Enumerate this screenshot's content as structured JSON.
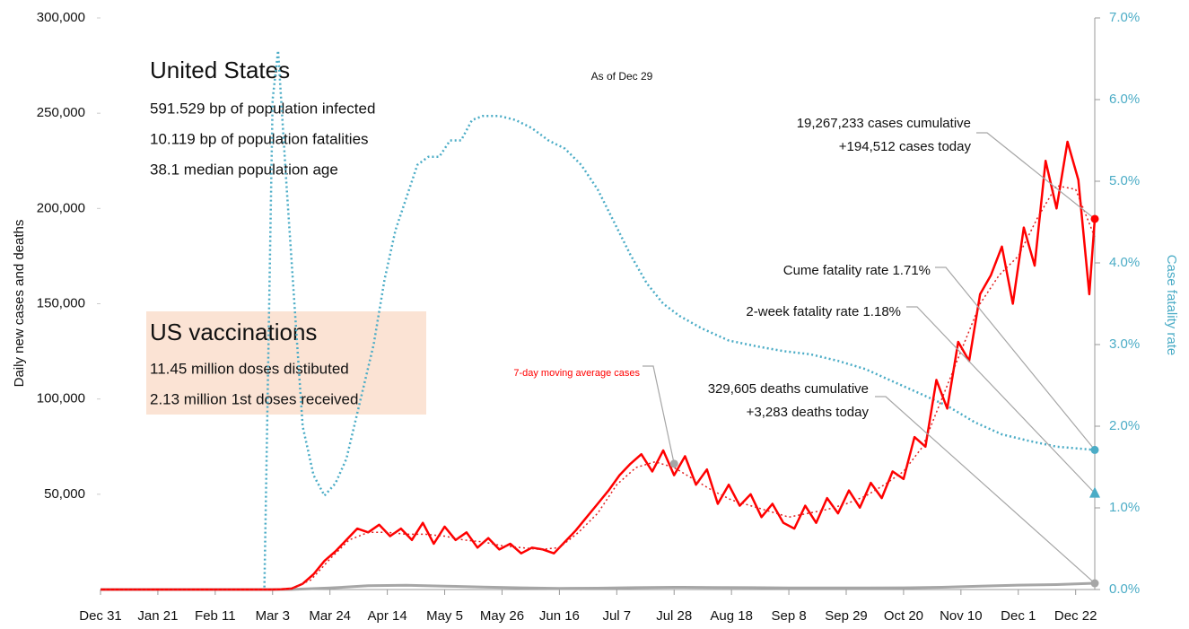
{
  "chart_data": {
    "type": "line",
    "title": "United States",
    "info": [
      "591.529 bp of population infected",
      "10.119 bp of population fatalities",
      "38.1 median population age"
    ],
    "vaccination": {
      "title": "US vaccinations",
      "lines": [
        "11.45 million doses distibuted",
        "2.13 million 1st doses received"
      ],
      "color": "#fbe3d4"
    },
    "date_note": "As of Dec 29",
    "ylabel": "Daily new cases and deaths",
    "y2label": "Case fatality rate",
    "xlim": [
      0,
      364
    ],
    "xticks": [
      {
        "value": 0,
        "label": "Dec 31"
      },
      {
        "value": 21,
        "label": "Jan 21"
      },
      {
        "value": 42,
        "label": "Feb 11"
      },
      {
        "value": 63,
        "label": "Mar 3"
      },
      {
        "value": 84,
        "label": "Mar 24"
      },
      {
        "value": 105,
        "label": "Apr 14"
      },
      {
        "value": 126,
        "label": "May 5"
      },
      {
        "value": 147,
        "label": "May 26"
      },
      {
        "value": 168,
        "label": "Jun 16"
      },
      {
        "value": 189,
        "label": "Jul 7"
      },
      {
        "value": 210,
        "label": "Jul 28"
      },
      {
        "value": 231,
        "label": "Aug 18"
      },
      {
        "value": 252,
        "label": "Sep 8"
      },
      {
        "value": 273,
        "label": "Sep 29"
      },
      {
        "value": 294,
        "label": "Oct 20"
      },
      {
        "value": 315,
        "label": "Nov 10"
      },
      {
        "value": 336,
        "label": "Dec 1"
      },
      {
        "value": 357,
        "label": "Dec 22"
      }
    ],
    "ylim": [
      0,
      300000
    ],
    "yticks": [
      {
        "value": 50000,
        "label": "50,000"
      },
      {
        "value": 100000,
        "label": "100,000"
      },
      {
        "value": 150000,
        "label": "150,000"
      },
      {
        "value": 200000,
        "label": "200,000"
      },
      {
        "value": 250000,
        "label": "250,000"
      },
      {
        "value": 300000,
        "label": "300,000"
      }
    ],
    "y2lim": [
      0,
      7
    ],
    "y2ticks": [
      {
        "value": 0,
        "label": "0.0%"
      },
      {
        "value": 1,
        "label": "1.0%"
      },
      {
        "value": 2,
        "label": "2.0%"
      },
      {
        "value": 3,
        "label": "3.0%"
      },
      {
        "value": 4,
        "label": "4.0%"
      },
      {
        "value": 5,
        "label": "5.0%"
      },
      {
        "value": 6,
        "label": "6.0%"
      },
      {
        "value": 7,
        "label": "7.0%"
      }
    ],
    "y2color": "#4bacc6",
    "series": [
      {
        "color": "#4bacc6",
        "style": "dotted",
        "width": 2.5,
        "axis": "y2",
        "x": [
          0,
          60,
          61,
          63,
          65,
          68,
          71,
          74,
          78,
          82,
          86,
          90,
          95,
          100,
          104,
          108,
          112,
          116,
          120,
          124,
          128,
          132,
          136,
          140,
          146,
          152,
          158,
          164,
          170,
          176,
          182,
          188,
          194,
          200,
          206,
          212,
          220,
          230,
          240,
          250,
          260,
          270,
          280,
          290,
          300,
          310,
          320,
          330,
          340,
          350,
          364
        ],
        "values": [
          0,
          0,
          2.0,
          6.0,
          6.6,
          5.0,
          3.5,
          2.0,
          1.4,
          1.15,
          1.3,
          1.6,
          2.3,
          3.0,
          3.8,
          4.4,
          4.8,
          5.2,
          5.3,
          5.3,
          5.5,
          5.5,
          5.75,
          5.8,
          5.8,
          5.75,
          5.65,
          5.5,
          5.4,
          5.2,
          4.9,
          4.5,
          4.1,
          3.75,
          3.5,
          3.35,
          3.2,
          3.05,
          2.98,
          2.92,
          2.88,
          2.8,
          2.7,
          2.55,
          2.4,
          2.25,
          2.05,
          1.9,
          1.82,
          1.75,
          1.71
        ]
      },
      {
        "color": "#a6a6a6",
        "style": "solid",
        "width": 3,
        "x": [
          0,
          56,
          70,
          84,
          98,
          112,
          126,
          140,
          154,
          168,
          182,
          196,
          210,
          224,
          238,
          252,
          266,
          280,
          294,
          308,
          322,
          336,
          350,
          364
        ],
        "values": [
          0,
          0,
          50,
          800,
          2000,
          2200,
          1800,
          1300,
          900,
          600,
          700,
          1000,
          1200,
          1100,
          1000,
          800,
          800,
          800,
          900,
          1200,
          1800,
          2300,
          2600,
          3283
        ]
      },
      {
        "color": "#ff0000",
        "style": "solid",
        "width": 2.5,
        "x": [
          0,
          63,
          66,
          70,
          74,
          78,
          82,
          86,
          90,
          94,
          98,
          102,
          106,
          110,
          114,
          118,
          122,
          126,
          130,
          134,
          138,
          142,
          146,
          150,
          154,
          158,
          162,
          166,
          170,
          174,
          178,
          182,
          186,
          190,
          194,
          198,
          202,
          206,
          210,
          214,
          218,
          222,
          226,
          230,
          234,
          238,
          242,
          246,
          250,
          254,
          258,
          262,
          266,
          270,
          274,
          278,
          282,
          286,
          290,
          294,
          298,
          302,
          306,
          310,
          314,
          318,
          322,
          326,
          330,
          334,
          338,
          342,
          346,
          350,
          354,
          358,
          362,
          364
        ],
        "values": [
          0,
          0,
          100,
          500,
          3000,
          8000,
          15000,
          20000,
          26000,
          32000,
          30000,
          34000,
          28000,
          32000,
          26000,
          35000,
          24000,
          33000,
          26000,
          30000,
          22000,
          27000,
          21000,
          24000,
          19000,
          22000,
          21000,
          19000,
          25000,
          31000,
          38000,
          45000,
          52000,
          60000,
          66000,
          71000,
          62000,
          73000,
          60000,
          70000,
          55000,
          63000,
          45000,
          55000,
          44000,
          50000,
          38000,
          45000,
          35000,
          32000,
          44000,
          35000,
          48000,
          40000,
          52000,
          43000,
          56000,
          48000,
          62000,
          58000,
          80000,
          75000,
          110000,
          95000,
          130000,
          120000,
          155000,
          165000,
          180000,
          150000,
          190000,
          170000,
          225000,
          200000,
          235000,
          215000,
          155000,
          194512
        ]
      },
      {
        "color": "#e02020",
        "style": "dotted",
        "width": 1.5,
        "x": [
          0,
          63,
          70,
          77,
          84,
          91,
          98,
          105,
          112,
          119,
          126,
          133,
          140,
          147,
          154,
          161,
          168,
          175,
          182,
          189,
          196,
          203,
          210,
          217,
          224,
          231,
          238,
          245,
          252,
          259,
          266,
          273,
          280,
          287,
          294,
          301,
          308,
          315,
          322,
          329,
          336,
          343,
          350,
          357,
          364
        ],
        "values": [
          0,
          0,
          500,
          5000,
          16000,
          26000,
          30000,
          30000,
          29000,
          29000,
          28000,
          26000,
          25000,
          23000,
          22000,
          21000,
          22000,
          30000,
          40000,
          55000,
          64000,
          67000,
          64000,
          58000,
          52000,
          47000,
          44000,
          41000,
          38000,
          40000,
          42000,
          45000,
          49000,
          55000,
          62000,
          75000,
          100000,
          125000,
          150000,
          165000,
          175000,
          195000,
          212000,
          210000,
          185000
        ]
      }
    ],
    "annotations": [
      {
        "lines": [
          "19,267,233 cases cumulative",
          "+194,512 cases today"
        ],
        "x": 364,
        "y": 194512,
        "marker": "circle",
        "color": "#ff0000"
      },
      {
        "lines": [
          "Cume fatality rate 1.71%"
        ],
        "x": 364,
        "y": 1.71,
        "axis": "y2",
        "marker": "circle",
        "color": "#4bacc6"
      },
      {
        "lines": [
          "2-week fatality rate 1.18%"
        ],
        "x": 364,
        "y": 1.18,
        "axis": "y2",
        "marker": "triangle",
        "color": "#4bacc6"
      },
      {
        "lines": [
          "329,605 deaths cumulative",
          "+3,283 deaths today"
        ],
        "x": 364,
        "y": 3283,
        "marker": "circle",
        "color": "#a6a6a6"
      },
      {
        "lines": [
          "7-day moving average cases"
        ],
        "x": 210,
        "y": 66000,
        "marker": "circle",
        "color": "#a6a6a6",
        "text_color": "#ff0000"
      }
    ]
  }
}
